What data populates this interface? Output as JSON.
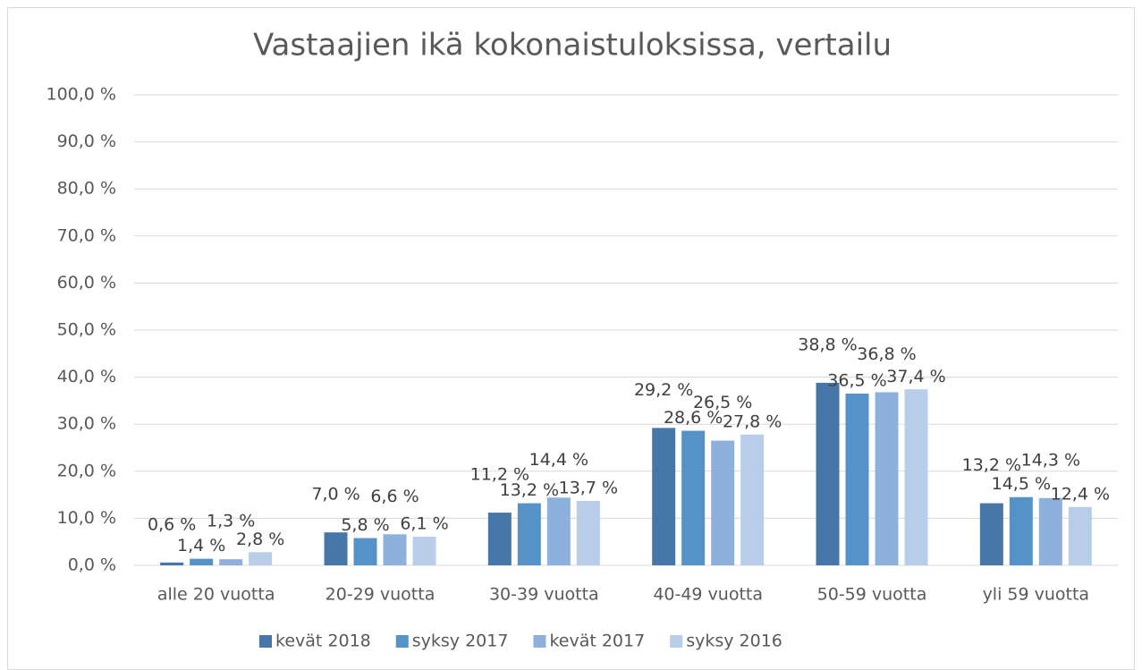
{
  "chart_data": {
    "type": "bar",
    "title": "Vastaajien ikä kokonaistuloksissa, vertailu",
    "categories": [
      "alle 20 vuotta",
      "20-29 vuotta",
      "30-39 vuotta",
      "40-49 vuotta",
      "50-59 vuotta",
      "yli 59 vuotta"
    ],
    "series": [
      {
        "name": "kevät 2018",
        "color": "#4677a8",
        "values": [
          0.6,
          7.0,
          11.2,
          29.2,
          38.8,
          13.2
        ],
        "value_labels": [
          "0,6 %",
          "7,0 %",
          "11,2 %",
          "29,2 %",
          "38,8 %",
          "13,2 %"
        ]
      },
      {
        "name": "syksy 2017",
        "color": "#5592c8",
        "values": [
          1.4,
          5.8,
          13.2,
          28.6,
          36.5,
          14.5
        ],
        "value_labels": [
          "1,4 %",
          "5,8 %",
          "13,2 %",
          "28,6 %",
          "36,5 %",
          "14,5 %"
        ]
      },
      {
        "name": "kevät 2017",
        "color": "#8db1dc",
        "values": [
          1.3,
          6.6,
          14.4,
          26.5,
          36.8,
          14.3
        ],
        "value_labels": [
          "1,3 %",
          "6,6 %",
          "14,4 %",
          "26,5 %",
          "36,8 %",
          "14,3 %"
        ]
      },
      {
        "name": "syksy 2016",
        "color": "#b8cde8",
        "values": [
          2.8,
          6.1,
          13.7,
          27.8,
          37.4,
          12.4
        ],
        "value_labels": [
          "2,8 %",
          "6,1 %",
          "13,7 %",
          "27,8 %",
          "37,4 %",
          "12,4 %"
        ]
      }
    ],
    "ylim": [
      0,
      100
    ],
    "yticks": [
      {
        "value": 0,
        "label": "0,0 %"
      },
      {
        "value": 10,
        "label": "10,0 %"
      },
      {
        "value": 20,
        "label": "20,0 %"
      },
      {
        "value": 30,
        "label": "30,0 %"
      },
      {
        "value": 40,
        "label": "40,0 %"
      },
      {
        "value": 50,
        "label": "50,0 %"
      },
      {
        "value": 60,
        "label": "60,0 %"
      },
      {
        "value": 70,
        "label": "70,0 %"
      },
      {
        "value": 80,
        "label": "80,0 %"
      },
      {
        "value": 90,
        "label": "90,0 %"
      },
      {
        "value": 100,
        "label": "100,0 %"
      }
    ],
    "grid": true,
    "legend": "bottom"
  }
}
